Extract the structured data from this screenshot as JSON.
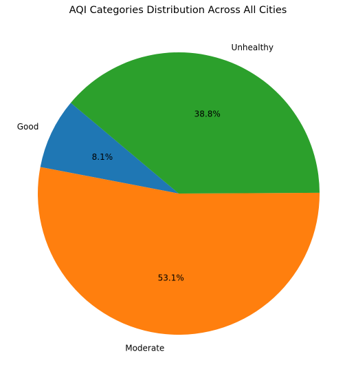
{
  "chart_data": {
    "type": "pie",
    "title": "AQI Categories Distribution Across All Cities",
    "categories": [
      "Good",
      "Moderate",
      "Unhealthy"
    ],
    "values": [
      8.1,
      53.1,
      38.8
    ],
    "labels_pct": [
      "8.1%",
      "53.1%",
      "38.8%"
    ],
    "colors": [
      "#1f77b4",
      "#ff7f0e",
      "#2ca02c"
    ],
    "start_angle_deg": 140,
    "direction": "counterclockwise",
    "legend": "none"
  }
}
